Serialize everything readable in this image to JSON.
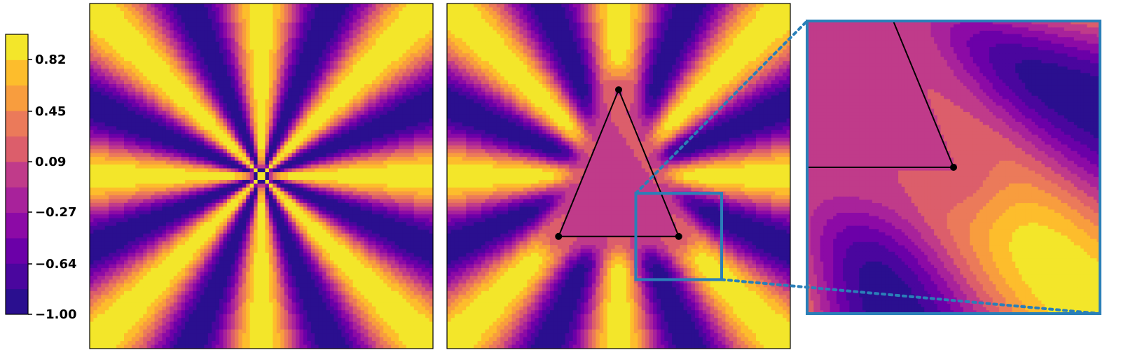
{
  "chart_data": {
    "type": "heatmap",
    "colorbar": {
      "ticks": [
        "0.82",
        "0.45",
        "0.09",
        "−0.27",
        "−0.64",
        "−1.00"
      ],
      "range": [
        -1.0,
        1.0
      ],
      "levels": 11
    },
    "panels": [
      {
        "name": "radial-pattern",
        "xlim": [
          -1,
          1
        ],
        "ylim": [
          -1,
          1
        ],
        "cycles": 8
      },
      {
        "name": "triangle-pattern",
        "xlim": [
          -1,
          1
        ],
        "ylim": [
          -1,
          1
        ],
        "cycles": 8,
        "triangle": [
          [
            0.0,
            0.5
          ],
          [
            -0.35,
            -0.35
          ],
          [
            0.35,
            -0.35
          ]
        ],
        "inset_box": {
          "x": [
            0.1,
            0.6
          ],
          "y": [
            -0.6,
            -0.1
          ]
        }
      },
      {
        "name": "zoom-inset",
        "xlim": [
          0.1,
          0.6
        ],
        "ylim": [
          -0.6,
          -0.1
        ]
      }
    ],
    "colors": {
      "levels": [
        "#2a0f8f",
        "#4a069e",
        "#6b00a8",
        "#8c0aa6",
        "#a8229b",
        "#c03b8a",
        "#dc5e6b",
        "#eb7a5a",
        "#f89d3e",
        "#fdbd2c",
        "#f3e62a"
      ],
      "inset_frame": "#2a7fb8",
      "triangle": "#000000"
    },
    "xlabel": "",
    "ylabel": "",
    "title": ""
  }
}
